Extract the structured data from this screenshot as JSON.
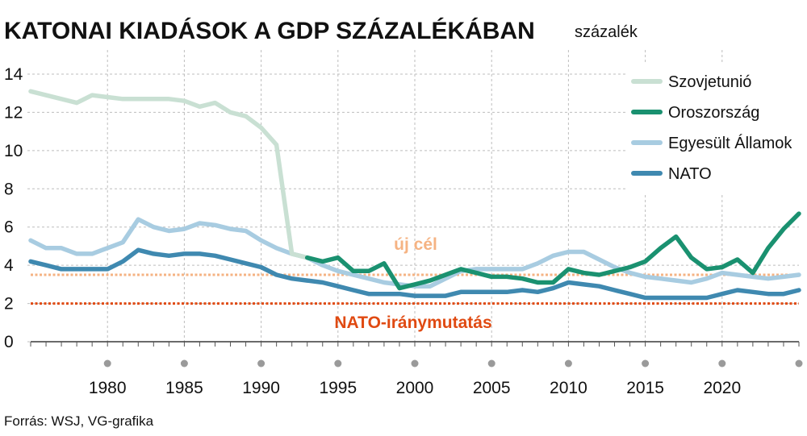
{
  "title": "KATONAI KIADÁSOK A GDP SZÁZALÉKÁBAN",
  "subtitle": "százalék",
  "source": "Forrás: WSJ, VG-grafika",
  "chart_data": {
    "type": "line",
    "unit": "százalék",
    "xlim": [
      1975,
      2025
    ],
    "ylim": [
      0,
      14
    ],
    "yticks": [
      0,
      2,
      4,
      6,
      8,
      10,
      12,
      14
    ],
    "xtick_labels": [
      1980,
      1985,
      1990,
      1995,
      2000,
      2005,
      2010,
      2015,
      2020
    ],
    "x_dot_marks": [
      1980,
      1985,
      1990,
      1995,
      2000,
      2005,
      2010,
      2015,
      2020,
      2025
    ],
    "grid": true,
    "legend_position": "top-right",
    "series": [
      {
        "name": "Szovjetunió",
        "color": "#c9e0d3",
        "x": [
          1975,
          1976,
          1977,
          1978,
          1979,
          1980,
          1981,
          1982,
          1983,
          1984,
          1985,
          1986,
          1987,
          1988,
          1989,
          1990,
          1991,
          1992,
          1993
        ],
        "y": [
          13.1,
          12.9,
          12.7,
          12.5,
          12.9,
          12.8,
          12.7,
          12.7,
          12.7,
          12.7,
          12.6,
          12.3,
          12.5,
          12.0,
          11.8,
          11.2,
          10.3,
          4.6,
          4.4
        ]
      },
      {
        "name": "Oroszország",
        "color": "#1a9170",
        "x": [
          1993,
          1994,
          1995,
          1996,
          1997,
          1998,
          1999,
          2000,
          2001,
          2002,
          2003,
          2004,
          2005,
          2006,
          2007,
          2008,
          2009,
          2010,
          2011,
          2012,
          2013,
          2014,
          2015,
          2016,
          2017,
          2018,
          2019,
          2020,
          2021,
          2022,
          2023,
          2024,
          2025
        ],
        "y": [
          4.4,
          4.2,
          4.4,
          3.7,
          3.7,
          4.1,
          2.8,
          3.0,
          3.2,
          3.5,
          3.8,
          3.6,
          3.4,
          3.4,
          3.3,
          3.1,
          3.1,
          3.8,
          3.6,
          3.5,
          3.7,
          3.9,
          4.2,
          4.9,
          5.5,
          4.4,
          3.8,
          3.9,
          4.3,
          3.6,
          4.9,
          5.9,
          6.7
        ]
      },
      {
        "name": "Egyesült Államok",
        "color": "#a8cce1",
        "x": [
          1975,
          1976,
          1977,
          1978,
          1979,
          1980,
          1981,
          1982,
          1983,
          1984,
          1985,
          1986,
          1987,
          1988,
          1989,
          1990,
          1991,
          1992,
          1993,
          1994,
          1995,
          1996,
          1997,
          1998,
          1999,
          2000,
          2001,
          2002,
          2003,
          2004,
          2005,
          2006,
          2007,
          2008,
          2009,
          2010,
          2011,
          2012,
          2013,
          2014,
          2015,
          2016,
          2017,
          2018,
          2019,
          2020,
          2021,
          2022,
          2023,
          2024,
          2025
        ],
        "y": [
          5.3,
          4.9,
          4.9,
          4.6,
          4.6,
          4.9,
          5.2,
          6.4,
          6.0,
          5.8,
          5.9,
          6.2,
          6.1,
          5.9,
          5.8,
          5.3,
          4.9,
          4.6,
          4.4,
          4.0,
          3.7,
          3.5,
          3.3,
          3.1,
          3.0,
          2.9,
          2.9,
          3.3,
          3.7,
          3.8,
          3.8,
          3.8,
          3.8,
          4.1,
          4.5,
          4.7,
          4.7,
          4.3,
          3.9,
          3.6,
          3.4,
          3.3,
          3.2,
          3.1,
          3.3,
          3.6,
          3.5,
          3.4,
          3.3,
          3.4,
          3.5
        ]
      },
      {
        "name": "NATO",
        "color": "#3f89b0",
        "x": [
          1975,
          1976,
          1977,
          1978,
          1979,
          1980,
          1981,
          1982,
          1983,
          1984,
          1985,
          1986,
          1987,
          1988,
          1989,
          1990,
          1991,
          1992,
          1993,
          1994,
          1995,
          1996,
          1997,
          1998,
          1999,
          2000,
          2001,
          2002,
          2003,
          2004,
          2005,
          2006,
          2007,
          2008,
          2009,
          2010,
          2011,
          2012,
          2013,
          2014,
          2015,
          2016,
          2017,
          2018,
          2019,
          2020,
          2021,
          2022,
          2023,
          2024,
          2025
        ],
        "y": [
          4.2,
          4.0,
          3.8,
          3.8,
          3.8,
          3.8,
          4.2,
          4.8,
          4.6,
          4.5,
          4.6,
          4.6,
          4.5,
          4.3,
          4.1,
          3.9,
          3.5,
          3.3,
          3.2,
          3.1,
          2.9,
          2.7,
          2.5,
          2.5,
          2.5,
          2.4,
          2.4,
          2.4,
          2.6,
          2.6,
          2.6,
          2.6,
          2.7,
          2.6,
          2.8,
          3.1,
          3.0,
          2.9,
          2.7,
          2.5,
          2.3,
          2.3,
          2.3,
          2.3,
          2.3,
          2.5,
          2.7,
          2.6,
          2.5,
          2.5,
          2.7
        ]
      }
    ],
    "reference_lines": [
      {
        "label": "új cél",
        "y": 3.5,
        "color": "#f5b383"
      },
      {
        "label": "NATO-iránymutatás",
        "y": 2.0,
        "color": "#e04a12"
      }
    ]
  }
}
